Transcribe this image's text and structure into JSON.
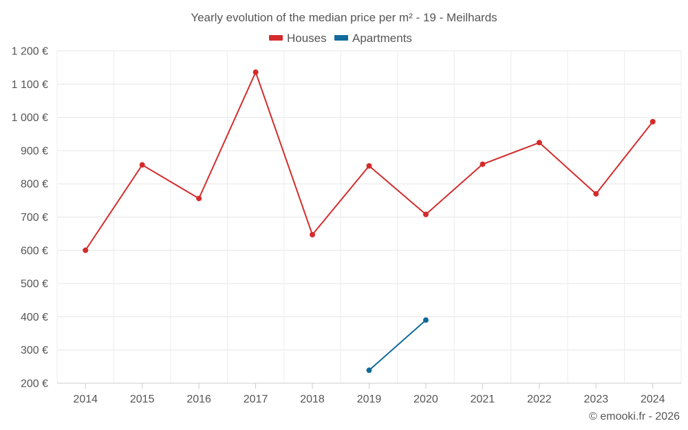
{
  "chart_data": {
    "type": "line",
    "title": "Yearly evolution of the median price per m² - 19 - Meilhards",
    "categories": [
      "2014",
      "2015",
      "2016",
      "2017",
      "2018",
      "2019",
      "2020",
      "2021",
      "2022",
      "2023",
      "2024"
    ],
    "series": [
      {
        "name": "Houses",
        "color": "#d42b2b",
        "values": [
          600,
          857,
          756,
          1136,
          647,
          854,
          708,
          859,
          924,
          770,
          987
        ]
      },
      {
        "name": "Apartments",
        "color": "#106a9c",
        "values": [
          null,
          null,
          null,
          null,
          null,
          239,
          390,
          null,
          null,
          null,
          null
        ]
      }
    ],
    "ylim": [
      200,
      1200
    ],
    "yticks": [
      200,
      300,
      400,
      500,
      600,
      700,
      800,
      900,
      1000,
      1100,
      1200
    ],
    "ytick_labels": [
      "200 €",
      "300 €",
      "400 €",
      "500 €",
      "600 €",
      "700 €",
      "800 €",
      "900 €",
      "1 000 €",
      "1 100 €",
      "1 200 €"
    ],
    "grid": true,
    "legend_position": "top-center",
    "xlabel": "",
    "ylabel": ""
  },
  "credit": "© emooki.fr - 2026"
}
